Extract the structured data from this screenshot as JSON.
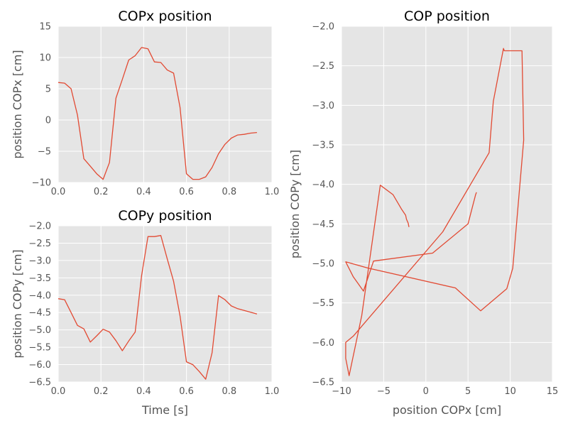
{
  "chart_data": [
    {
      "id": "copx",
      "type": "line",
      "title": "COPx position",
      "xlabel": "",
      "ylabel": "position COPx [cm]",
      "xlim": [
        0,
        1.0
      ],
      "ylim": [
        -10,
        15
      ],
      "xticks": [
        "0.0",
        "0.2",
        "0.4",
        "0.6",
        "0.8",
        "1.0"
      ],
      "yticks": [
        "15",
        "10",
        "5",
        "0",
        "−5",
        "−10"
      ],
      "grid": true,
      "color": "#E24A33",
      "series": [
        {
          "x": [
            0.0,
            0.03,
            0.06,
            0.09,
            0.12,
            0.15,
            0.18,
            0.21,
            0.24,
            0.27,
            0.3,
            0.33,
            0.36,
            0.39,
            0.42,
            0.45,
            0.48,
            0.51,
            0.54,
            0.57,
            0.6,
            0.63,
            0.66,
            0.69,
            0.72,
            0.75,
            0.78,
            0.81,
            0.84,
            0.87,
            0.9,
            0.93
          ],
          "y": [
            6.0,
            5.9,
            5.0,
            0.8,
            -6.2,
            -7.4,
            -8.6,
            -9.5,
            -6.8,
            3.5,
            6.5,
            9.6,
            10.3,
            11.6,
            11.4,
            9.3,
            9.2,
            8.0,
            7.5,
            2.0,
            -8.6,
            -9.5,
            -9.5,
            -9.1,
            -7.6,
            -5.4,
            -3.9,
            -2.9,
            -2.4,
            -2.3,
            -2.1,
            -2.0
          ]
        }
      ]
    },
    {
      "id": "copy",
      "type": "line",
      "title": "COPy position",
      "xlabel": "Time [s]",
      "ylabel": "position COPy [cm]",
      "xlim": [
        0,
        1.0
      ],
      "ylim": [
        -6.5,
        -2.0
      ],
      "xticks": [
        "0.0",
        "0.2",
        "0.4",
        "0.6",
        "0.8",
        "1.0"
      ],
      "yticks": [
        "−2.0",
        "−2.5",
        "−3.0",
        "−3.5",
        "−4.0",
        "−4.5",
        "−5.0",
        "−5.5",
        "−6.0",
        "−6.5"
      ],
      "grid": true,
      "color": "#E24A33",
      "series": [
        {
          "x": [
            0.0,
            0.03,
            0.06,
            0.09,
            0.12,
            0.15,
            0.18,
            0.21,
            0.24,
            0.27,
            0.3,
            0.33,
            0.36,
            0.39,
            0.42,
            0.45,
            0.48,
            0.51,
            0.54,
            0.57,
            0.6,
            0.63,
            0.66,
            0.69,
            0.72,
            0.75,
            0.78,
            0.81,
            0.84,
            0.87,
            0.9,
            0.93
          ],
          "y": [
            -4.1,
            -4.13,
            -4.5,
            -4.87,
            -4.97,
            -5.35,
            -5.17,
            -4.98,
            -5.06,
            -5.31,
            -5.6,
            -5.32,
            -5.06,
            -3.44,
            -2.31,
            -2.31,
            -2.28,
            -2.95,
            -3.6,
            -4.6,
            -5.92,
            -6.0,
            -6.2,
            -6.42,
            -5.66,
            -4.01,
            -4.13,
            -4.31,
            -4.39,
            -4.44,
            -4.49,
            -4.54
          ]
        }
      ]
    },
    {
      "id": "cop",
      "type": "line",
      "title": "COP position",
      "xlabel": "position COPx [cm]",
      "ylabel": "position COPy [cm]",
      "xlim": [
        -10,
        15
      ],
      "ylim": [
        -6.5,
        -2.0
      ],
      "xticks": [
        "−10",
        "−5",
        "0",
        "5",
        "10",
        "15"
      ],
      "yticks": [
        "−2.0",
        "−2.5",
        "−3.0",
        "−3.5",
        "−4.0",
        "−4.5",
        "−5.0",
        "−5.5",
        "−6.0",
        "−6.5"
      ],
      "grid": true,
      "color": "#E24A33",
      "series": [
        {
          "x": [
            6.0,
            5.9,
            5.0,
            0.8,
            -6.2,
            -7.4,
            -8.6,
            -9.5,
            -6.8,
            3.5,
            6.5,
            9.6,
            10.3,
            11.6,
            11.4,
            9.3,
            9.2,
            8.0,
            7.5,
            2.0,
            -8.6,
            -9.5,
            -9.5,
            -9.1,
            -7.6,
            -5.4,
            -3.9,
            -2.9,
            -2.4,
            -2.3,
            -2.1,
            -2.0
          ],
          "y": [
            -4.1,
            -4.13,
            -4.5,
            -4.87,
            -4.97,
            -5.35,
            -5.17,
            -4.98,
            -5.06,
            -5.31,
            -5.6,
            -5.32,
            -5.06,
            -3.44,
            -2.31,
            -2.31,
            -2.28,
            -2.95,
            -3.6,
            -4.6,
            -5.92,
            -6.0,
            -6.2,
            -6.42,
            -5.66,
            -4.01,
            -4.13,
            -4.31,
            -4.39,
            -4.44,
            -4.49,
            -4.54
          ]
        }
      ]
    }
  ]
}
